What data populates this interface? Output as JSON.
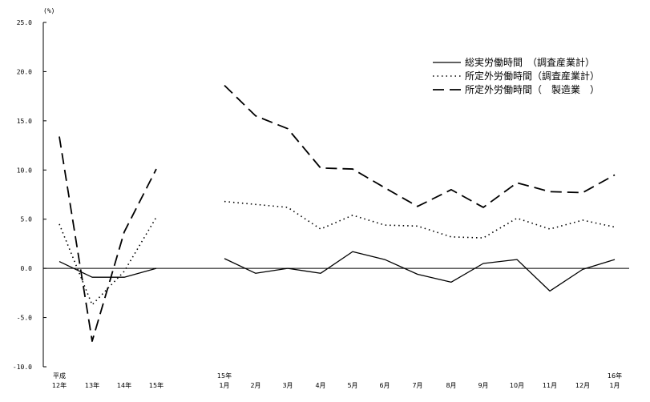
{
  "chart_data": {
    "type": "line",
    "unit_label": "(%)",
    "ylim": [
      -10,
      25
    ],
    "yticks": [
      "25.0",
      "20.0",
      "15.0",
      "10.0",
      "5.0",
      "0.0",
      "-5.0",
      "-10.0"
    ],
    "grid": false,
    "legend_position": "top-right",
    "x_labels": [
      [
        "平成",
        "12年"
      ],
      [
        "13年"
      ],
      [
        "14年"
      ],
      [
        "15年"
      ],
      [
        "15年",
        "1月"
      ],
      [
        "2月"
      ],
      [
        "3月"
      ],
      [
        "4月"
      ],
      [
        "5月"
      ],
      [
        "6月"
      ],
      [
        "7月"
      ],
      [
        "8月"
      ],
      [
        "9月"
      ],
      [
        "10月"
      ],
      [
        "11月"
      ],
      [
        "12月"
      ],
      [
        "16年",
        "1月"
      ]
    ],
    "series": [
      {
        "name": "総実労働時間　（調査産業計）",
        "style": "solid",
        "annual": [
          0.7,
          -0.9,
          -0.9,
          0.0
        ],
        "monthly": [
          1.0,
          -0.5,
          0.0,
          -0.5,
          1.7,
          0.9,
          -0.6,
          -1.4,
          0.5,
          0.9,
          -2.3,
          -0.1,
          0.9
        ]
      },
      {
        "name": "所定外労働時間（調査産業計）",
        "style": "dotted",
        "annual": [
          4.5,
          -3.7,
          -0.3,
          5.2
        ],
        "monthly": [
          6.8,
          6.5,
          6.2,
          4.0,
          5.4,
          4.4,
          4.3,
          3.2,
          3.1,
          5.1,
          4.0,
          4.9,
          4.2
        ]
      },
      {
        "name": "所定外労働時間（　製造業　）",
        "style": "dashed",
        "annual": [
          13.4,
          -7.4,
          3.7,
          10.1
        ],
        "monthly": [
          18.6,
          15.5,
          14.2,
          10.2,
          10.1,
          8.2,
          6.3,
          8.0,
          6.2,
          8.7,
          7.8,
          7.7,
          9.5
        ]
      }
    ]
  }
}
